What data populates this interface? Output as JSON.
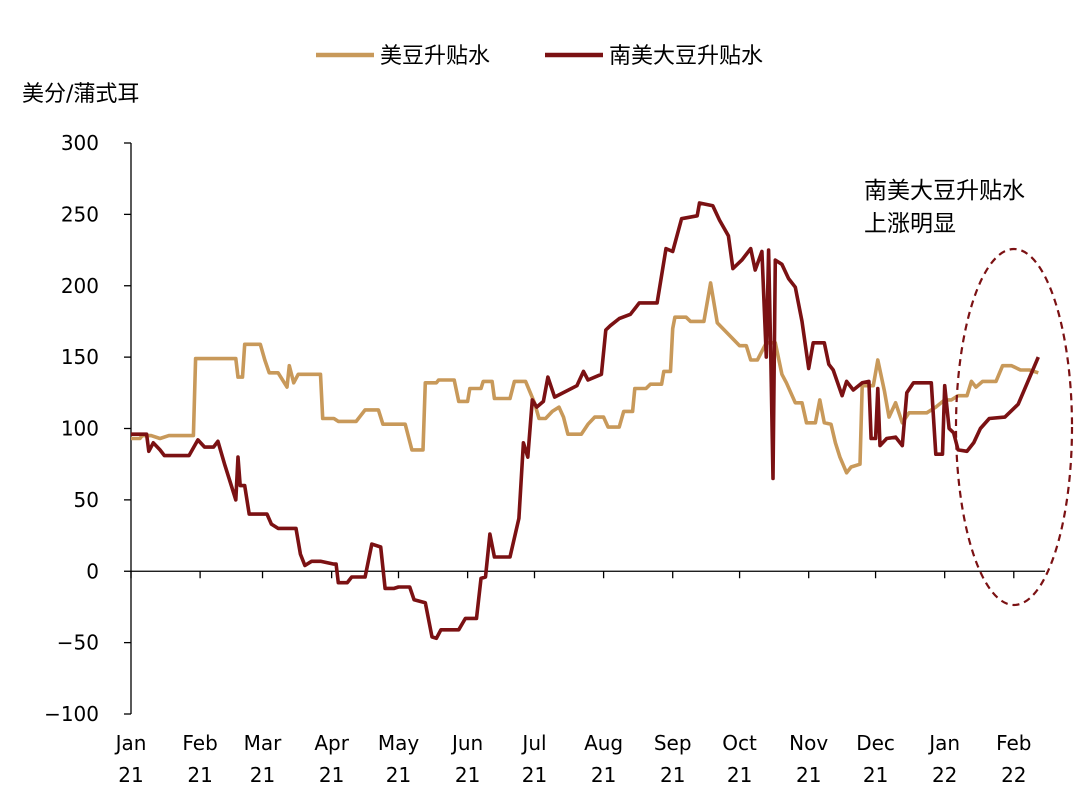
{
  "chart_data": {
    "type": "line",
    "ylabel": "美分/蒲式耳",
    "ylim": [
      -100,
      300
    ],
    "yticks": [
      300,
      250,
      200,
      150,
      100,
      50,
      0,
      -50,
      -100
    ],
    "ytick_labels": [
      "300",
      "250",
      "200",
      "150",
      "100",
      "50",
      "0",
      "−50",
      "−100"
    ],
    "x_range": [
      "2021-01-01",
      "2022-02-15"
    ],
    "xticks": [
      {
        "date": "2021-01-01",
        "month": "Jan",
        "year": "21"
      },
      {
        "date": "2021-02-01",
        "month": "Feb",
        "year": "21"
      },
      {
        "date": "2021-03-01",
        "month": "Mar",
        "year": "21"
      },
      {
        "date": "2021-04-01",
        "month": "Apr",
        "year": "21"
      },
      {
        "date": "2021-05-01",
        "month": "May",
        "year": "21"
      },
      {
        "date": "2021-06-01",
        "month": "Jun",
        "year": "21"
      },
      {
        "date": "2021-07-01",
        "month": "Jul",
        "year": "21"
      },
      {
        "date": "2021-08-01",
        "month": "Aug",
        "year": "21"
      },
      {
        "date": "2021-09-01",
        "month": "Sep",
        "year": "21"
      },
      {
        "date": "2021-10-01",
        "month": "Oct",
        "year": "21"
      },
      {
        "date": "2021-11-01",
        "month": "Nov",
        "year": "21"
      },
      {
        "date": "2021-12-01",
        "month": "Dec",
        "year": "21"
      },
      {
        "date": "2022-01-01",
        "month": "Jan",
        "year": "22"
      },
      {
        "date": "2022-02-01",
        "month": "Feb",
        "year": "22"
      }
    ],
    "legend_position": "top-center",
    "grid": false,
    "annotation": {
      "lines": [
        "南美大豆升贴水",
        "上涨明显"
      ],
      "shape": "dashed-ellipse",
      "target_dates": [
        "2022-01-01",
        "2022-02-15"
      ]
    },
    "series": [
      {
        "name": "美豆升贴水",
        "color": "#C8995A",
        "points": [
          [
            "2021-01-01",
            93
          ],
          [
            "2021-01-05",
            93
          ],
          [
            "2021-01-06",
            95
          ],
          [
            "2021-01-10",
            95
          ],
          [
            "2021-01-14",
            93
          ],
          [
            "2021-01-18",
            95
          ],
          [
            "2021-01-29",
            95
          ],
          [
            "2021-01-30",
            149
          ],
          [
            "2021-02-17",
            149
          ],
          [
            "2021-02-18",
            136
          ],
          [
            "2021-02-20",
            136
          ],
          [
            "2021-02-21",
            159
          ],
          [
            "2021-02-28",
            159
          ],
          [
            "2021-03-02",
            148
          ],
          [
            "2021-03-04",
            139
          ],
          [
            "2021-03-08",
            139
          ],
          [
            "2021-03-12",
            129
          ],
          [
            "2021-03-13",
            144
          ],
          [
            "2021-03-15",
            132
          ],
          [
            "2021-03-17",
            138
          ],
          [
            "2021-03-27",
            138
          ],
          [
            "2021-03-28",
            107
          ],
          [
            "2021-04-02",
            107
          ],
          [
            "2021-04-04",
            105
          ],
          [
            "2021-04-12",
            105
          ],
          [
            "2021-04-14",
            109
          ],
          [
            "2021-04-16",
            113
          ],
          [
            "2021-04-22",
            113
          ],
          [
            "2021-04-24",
            103
          ],
          [
            "2021-05-04",
            103
          ],
          [
            "2021-05-07",
            85
          ],
          [
            "2021-05-12",
            85
          ],
          [
            "2021-05-13",
            132
          ],
          [
            "2021-05-18",
            132
          ],
          [
            "2021-05-19",
            134
          ],
          [
            "2021-05-26",
            134
          ],
          [
            "2021-05-28",
            119
          ],
          [
            "2021-06-01",
            119
          ],
          [
            "2021-06-02",
            128
          ],
          [
            "2021-06-07",
            128
          ],
          [
            "2021-06-08",
            133
          ],
          [
            "2021-06-12",
            133
          ],
          [
            "2021-06-13",
            121
          ],
          [
            "2021-06-20",
            121
          ],
          [
            "2021-06-22",
            133
          ],
          [
            "2021-06-27",
            133
          ],
          [
            "2021-07-01",
            118
          ],
          [
            "2021-07-03",
            107
          ],
          [
            "2021-07-06",
            107
          ],
          [
            "2021-07-09",
            112
          ],
          [
            "2021-07-12",
            115
          ],
          [
            "2021-07-14",
            108
          ],
          [
            "2021-07-16",
            96
          ],
          [
            "2021-07-22",
            96
          ],
          [
            "2021-07-25",
            103
          ],
          [
            "2021-07-28",
            108
          ],
          [
            "2021-08-01",
            108
          ],
          [
            "2021-08-03",
            101
          ],
          [
            "2021-08-08",
            101
          ],
          [
            "2021-08-10",
            112
          ],
          [
            "2021-08-14",
            112
          ],
          [
            "2021-08-15",
            128
          ],
          [
            "2021-08-20",
            128
          ],
          [
            "2021-08-22",
            131
          ],
          [
            "2021-08-27",
            131
          ],
          [
            "2021-08-28",
            140
          ],
          [
            "2021-08-31",
            140
          ],
          [
            "2021-09-01",
            170
          ],
          [
            "2021-09-02",
            178
          ],
          [
            "2021-09-07",
            178
          ],
          [
            "2021-09-09",
            175
          ],
          [
            "2021-09-15",
            175
          ],
          [
            "2021-09-18",
            202
          ],
          [
            "2021-09-21",
            174
          ],
          [
            "2021-09-26",
            166
          ],
          [
            "2021-10-01",
            158
          ],
          [
            "2021-10-04",
            158
          ],
          [
            "2021-10-06",
            148
          ],
          [
            "2021-10-09",
            148
          ],
          [
            "2021-10-13",
            160
          ],
          [
            "2021-10-17",
            160
          ],
          [
            "2021-10-20",
            138
          ],
          [
            "2021-10-22",
            132
          ],
          [
            "2021-10-26",
            118
          ],
          [
            "2021-10-29",
            118
          ],
          [
            "2021-10-31",
            104
          ],
          [
            "2021-11-04",
            104
          ],
          [
            "2021-11-06",
            120
          ],
          [
            "2021-11-08",
            104
          ],
          [
            "2021-11-11",
            103
          ],
          [
            "2021-11-13",
            90
          ],
          [
            "2021-11-15",
            80
          ],
          [
            "2021-11-18",
            69
          ],
          [
            "2021-11-20",
            73
          ],
          [
            "2021-11-24",
            75
          ],
          [
            "2021-11-25",
            130
          ],
          [
            "2021-11-30",
            130
          ],
          [
            "2021-12-02",
            148
          ],
          [
            "2021-12-05",
            126
          ],
          [
            "2021-12-07",
            108
          ],
          [
            "2021-12-10",
            118
          ],
          [
            "2021-12-13",
            104
          ],
          [
            "2021-12-16",
            111
          ],
          [
            "2021-12-24",
            111
          ],
          [
            "2021-12-28",
            115
          ],
          [
            "2022-01-01",
            120
          ],
          [
            "2022-01-04",
            120
          ],
          [
            "2022-01-07",
            123
          ],
          [
            "2022-01-11",
            123
          ],
          [
            "2022-01-13",
            133
          ],
          [
            "2022-01-15",
            129
          ],
          [
            "2022-01-18",
            133
          ],
          [
            "2022-01-24",
            133
          ],
          [
            "2022-01-27",
            144
          ],
          [
            "2022-01-31",
            144
          ],
          [
            "2022-02-04",
            141
          ],
          [
            "2022-02-08",
            141
          ],
          [
            "2022-02-12",
            139
          ]
        ]
      },
      {
        "name": "南美大豆升贴水",
        "color": "#7B1113",
        "points": [
          [
            "2021-01-01",
            96
          ],
          [
            "2021-01-08",
            96
          ],
          [
            "2021-01-09",
            84
          ],
          [
            "2021-01-11",
            90
          ],
          [
            "2021-01-14",
            85
          ],
          [
            "2021-01-16",
            81
          ],
          [
            "2021-01-27",
            81
          ],
          [
            "2021-01-31",
            92
          ],
          [
            "2021-02-03",
            87
          ],
          [
            "2021-02-07",
            87
          ],
          [
            "2021-02-09",
            91
          ],
          [
            "2021-02-12",
            75
          ],
          [
            "2021-02-15",
            60
          ],
          [
            "2021-02-17",
            50
          ],
          [
            "2021-02-18",
            80
          ],
          [
            "2021-02-19",
            60
          ],
          [
            "2021-02-21",
            60
          ],
          [
            "2021-02-23",
            40
          ],
          [
            "2021-03-03",
            40
          ],
          [
            "2021-03-05",
            33
          ],
          [
            "2021-03-08",
            30
          ],
          [
            "2021-03-16",
            30
          ],
          [
            "2021-03-18",
            12
          ],
          [
            "2021-03-20",
            4
          ],
          [
            "2021-03-23",
            7
          ],
          [
            "2021-03-27",
            7
          ],
          [
            "2021-04-02",
            5
          ],
          [
            "2021-04-03",
            5
          ],
          [
            "2021-04-04",
            -8
          ],
          [
            "2021-04-08",
            -8
          ],
          [
            "2021-04-10",
            -4
          ],
          [
            "2021-04-16",
            -4
          ],
          [
            "2021-04-19",
            19
          ],
          [
            "2021-04-23",
            17
          ],
          [
            "2021-04-25",
            -12
          ],
          [
            "2021-04-29",
            -12
          ],
          [
            "2021-05-01",
            -11
          ],
          [
            "2021-05-06",
            -11
          ],
          [
            "2021-05-08",
            -20
          ],
          [
            "2021-05-13",
            -22
          ],
          [
            "2021-05-16",
            -46
          ],
          [
            "2021-05-18",
            -47
          ],
          [
            "2021-05-20",
            -41
          ],
          [
            "2021-05-28",
            -41
          ],
          [
            "2021-05-31",
            -33
          ],
          [
            "2021-06-05",
            -33
          ],
          [
            "2021-06-07",
            -5
          ],
          [
            "2021-06-09",
            -4
          ],
          [
            "2021-06-11",
            26
          ],
          [
            "2021-06-13",
            10
          ],
          [
            "2021-06-20",
            10
          ],
          [
            "2021-06-24",
            37
          ],
          [
            "2021-06-26",
            90
          ],
          [
            "2021-06-28",
            80
          ],
          [
            "2021-06-30",
            120
          ],
          [
            "2021-07-02",
            115
          ],
          [
            "2021-07-05",
            119
          ],
          [
            "2021-07-07",
            136
          ],
          [
            "2021-07-10",
            122
          ],
          [
            "2021-07-20",
            130
          ],
          [
            "2021-07-23",
            140
          ],
          [
            "2021-07-25",
            134
          ],
          [
            "2021-07-31",
            138
          ],
          [
            "2021-08-02",
            169
          ],
          [
            "2021-08-04",
            172
          ],
          [
            "2021-08-08",
            177
          ],
          [
            "2021-08-13",
            180
          ],
          [
            "2021-08-17",
            188
          ],
          [
            "2021-08-25",
            188
          ],
          [
            "2021-08-29",
            226
          ],
          [
            "2021-09-01",
            224
          ],
          [
            "2021-09-05",
            247
          ],
          [
            "2021-09-12",
            249
          ],
          [
            "2021-09-13",
            258
          ],
          [
            "2021-09-19",
            256
          ],
          [
            "2021-09-22",
            246
          ],
          [
            "2021-09-26",
            235
          ],
          [
            "2021-09-28",
            212
          ],
          [
            "2021-10-02",
            218
          ],
          [
            "2021-10-06",
            226
          ],
          [
            "2021-10-08",
            211
          ],
          [
            "2021-10-11",
            224
          ],
          [
            "2021-10-13",
            150
          ],
          [
            "2021-10-14",
            225
          ],
          [
            "2021-10-15",
            150
          ],
          [
            "2021-10-16",
            65
          ],
          [
            "2021-10-17",
            218
          ],
          [
            "2021-10-20",
            215
          ],
          [
            "2021-10-23",
            205
          ],
          [
            "2021-10-26",
            199
          ],
          [
            "2021-10-29",
            175
          ],
          [
            "2021-11-01",
            142
          ],
          [
            "2021-11-03",
            160
          ],
          [
            "2021-11-08",
            160
          ],
          [
            "2021-11-10",
            145
          ],
          [
            "2021-11-12",
            141
          ],
          [
            "2021-11-16",
            123
          ],
          [
            "2021-11-18",
            133
          ],
          [
            "2021-11-21",
            127
          ],
          [
            "2021-11-25",
            132
          ],
          [
            "2021-11-28",
            133
          ],
          [
            "2021-11-29",
            93
          ],
          [
            "2021-12-01",
            93
          ],
          [
            "2021-12-02",
            128
          ],
          [
            "2021-12-03",
            88
          ],
          [
            "2021-12-06",
            93
          ],
          [
            "2021-12-10",
            94
          ],
          [
            "2021-12-13",
            88
          ],
          [
            "2021-12-15",
            125
          ],
          [
            "2021-12-18",
            132
          ],
          [
            "2021-12-26",
            132
          ],
          [
            "2021-12-28",
            82
          ],
          [
            "2021-12-31",
            82
          ],
          [
            "2022-01-01",
            130
          ],
          [
            "2022-01-03",
            100
          ],
          [
            "2022-01-05",
            97
          ],
          [
            "2022-01-07",
            85
          ],
          [
            "2022-01-11",
            84
          ],
          [
            "2022-01-14",
            90
          ],
          [
            "2022-01-17",
            100
          ],
          [
            "2022-01-21",
            107
          ],
          [
            "2022-01-28",
            108
          ],
          [
            "2022-02-03",
            117
          ],
          [
            "2022-02-12",
            150
          ]
        ]
      }
    ]
  }
}
